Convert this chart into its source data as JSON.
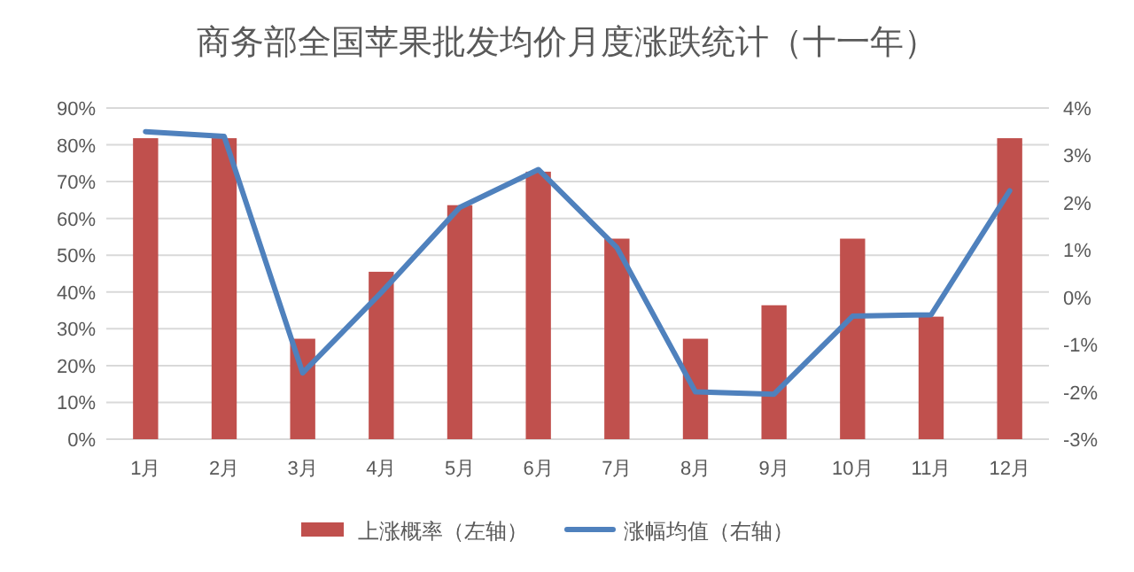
{
  "chart_data": {
    "type": "bar",
    "title": "商务部全国苹果批发均价月度涨跌统计（十一年）",
    "categories": [
      "1月",
      "2月",
      "3月",
      "4月",
      "5月",
      "6月",
      "7月",
      "8月",
      "9月",
      "10月",
      "11月",
      "12月"
    ],
    "series": [
      {
        "name": "上涨概率（左轴）",
        "color": "#c0504d",
        "values": [
          81.8,
          81.8,
          27.3,
          45.5,
          63.6,
          72.7,
          54.5,
          27.3,
          36.4,
          54.5,
          33.3,
          81.8
        ]
      },
      {
        "name": "涨幅均值（右轴）",
        "type": "line",
        "axis": "y2",
        "color": "#4f81bd",
        "values": [
          3.5,
          3.4,
          -1.6,
          0.1,
          1.9,
          2.7,
          1.05,
          -2.0,
          -2.05,
          -0.4,
          -0.37,
          2.25
        ]
      }
    ],
    "ylim": [
      0,
      90
    ],
    "yticks": [
      {
        "value": 0,
        "label": "0%"
      },
      {
        "value": 10,
        "label": "10%"
      },
      {
        "value": 20,
        "label": "20%"
      },
      {
        "value": 30,
        "label": "30%"
      },
      {
        "value": 40,
        "label": "40%"
      },
      {
        "value": 50,
        "label": "50%"
      },
      {
        "value": 60,
        "label": "60%"
      },
      {
        "value": 70,
        "label": "70%"
      },
      {
        "value": 80,
        "label": "80%"
      },
      {
        "value": 90,
        "label": "90%"
      }
    ],
    "y2lim": [
      -3,
      4
    ],
    "y2ticks": [
      {
        "value": -3,
        "label": "-3%"
      },
      {
        "value": -2,
        "label": "-2%"
      },
      {
        "value": -1,
        "label": "-1%"
      },
      {
        "value": 0,
        "label": "0%"
      },
      {
        "value": 1,
        "label": "1%"
      },
      {
        "value": 2,
        "label": "2%"
      },
      {
        "value": 3,
        "label": "3%"
      },
      {
        "value": 4,
        "label": "4%"
      }
    ],
    "grid": "y",
    "legend": "bottom",
    "marker": "none",
    "line_style": "solid"
  }
}
